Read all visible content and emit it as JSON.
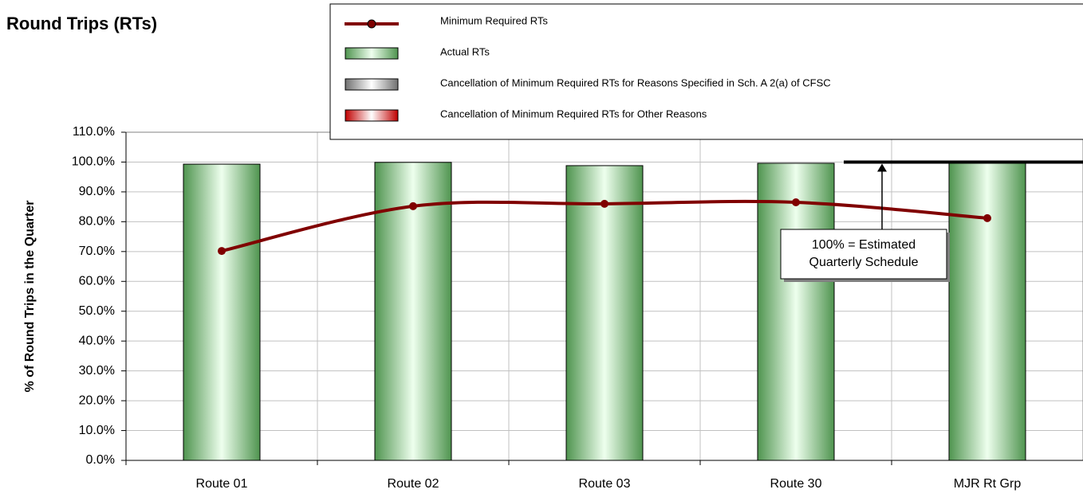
{
  "chart_data": {
    "type": "bar",
    "title": "Round Trips (RTs)",
    "y_label": "% of Round Trips in the Quarter",
    "categories": [
      "Route 01",
      "Route 02",
      "Route 03",
      "Route 30",
      "MJR Rt Grp"
    ],
    "series": [
      {
        "name": "Minimum Required RTs",
        "type": "line",
        "color": "#800000",
        "values": [
          70.2,
          85.2,
          86.0,
          86.5,
          81.2
        ]
      },
      {
        "name": "Actual RTs",
        "type": "bar",
        "color": "#4f944f",
        "values": [
          99.3,
          99.9,
          98.8,
          99.6,
          99.6
        ]
      },
      {
        "name": "Cancellation of Minimum Required RTs for Reasons Specified in Sch. A 2(a) of CFSC",
        "type": "bar",
        "color": "#707070",
        "values": [
          0,
          0,
          0,
          0,
          0
        ]
      },
      {
        "name": "Cancellation of Minimum Required RTs for Other Reasons",
        "type": "bar",
        "color": "#c00000",
        "values": [
          0,
          0,
          0,
          0,
          0
        ]
      }
    ],
    "ylim": [
      0,
      110
    ],
    "yticks": [
      {
        "value": 0,
        "label": "0.0%"
      },
      {
        "value": 10,
        "label": "10.0%"
      },
      {
        "value": 20,
        "label": "20.0%"
      },
      {
        "value": 30,
        "label": "30.0%"
      },
      {
        "value": 40,
        "label": "40.0%"
      },
      {
        "value": 50,
        "label": "50.0%"
      },
      {
        "value": 60,
        "label": "60.0%"
      },
      {
        "value": 70,
        "label": "70.0%"
      },
      {
        "value": 80,
        "label": "80.0%"
      },
      {
        "value": 90,
        "label": "90.0%"
      },
      {
        "value": 100,
        "label": "100.0%"
      },
      {
        "value": 110,
        "label": "110.0%"
      }
    ],
    "grid": true,
    "reference_line": {
      "value": 100,
      "color": "#000000"
    },
    "annotation": {
      "lines": [
        "100% = Estimated",
        "Quarterly Schedule"
      ]
    }
  }
}
